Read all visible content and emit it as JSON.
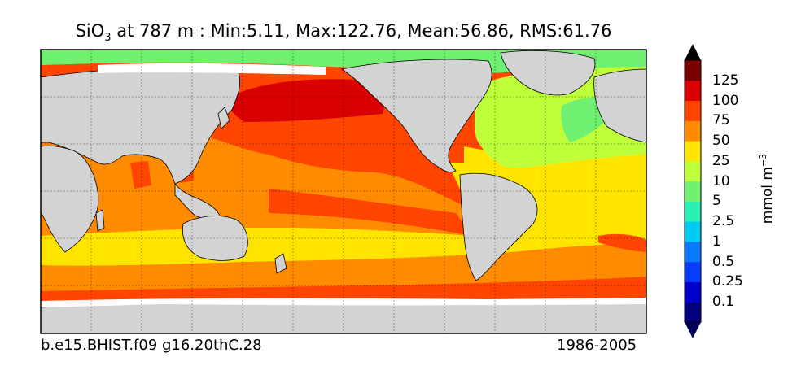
{
  "title": {
    "species": "SiO",
    "subscript": "3",
    "rest": " at 787 m : Min:5.11, Max:122.76, Mean:56.86, RMS:61.76"
  },
  "footer": {
    "case_name": "b.e15.BHIST.f09 g16.20thC.28",
    "period": "1986-2005"
  },
  "colorbar": {
    "unit_base": "mmol m",
    "unit_exp": "−3",
    "ticks": [
      "125",
      "100",
      "75",
      "50",
      "25",
      "10",
      "5",
      "2.5",
      "1",
      "0.5",
      "0.25",
      "0.1"
    ],
    "colors": [
      "#000080",
      "#0000cd",
      "#0a3cff",
      "#0a7bff",
      "#00c8f0",
      "#28f0b4",
      "#6ff070",
      "#bfff3a",
      "#ffe400",
      "#ff8c00",
      "#ff4500",
      "#d80000",
      "#7a0000"
    ],
    "arrow_low_color": "#00005a",
    "arrow_high_color": "#000000"
  },
  "map": {
    "land_color": "#d3d3d3",
    "missing_color": "#ffffff",
    "ocean_fill_colors": {
      "arctic": "#6ff070",
      "north_atlantic": "#bfff3a",
      "subtropical": "#ffe400",
      "tropical": "#ff8c00",
      "pacific_high": "#ff4500",
      "subarctic_pacific": "#d80000"
    }
  }
}
